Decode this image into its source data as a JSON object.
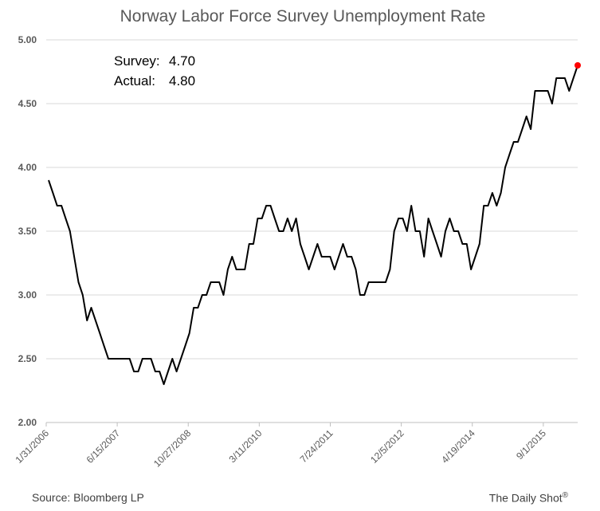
{
  "chart_data": {
    "type": "line",
    "title": "Norway Labor Force Survey Unemployment Rate",
    "xlabel": "",
    "ylabel": "",
    "ylim": [
      2.0,
      5.0
    ],
    "yticks": [
      "2.00",
      "2.50",
      "3.00",
      "3.50",
      "4.00",
      "4.50",
      "5.00"
    ],
    "xticks": [
      "1/31/2006",
      "6/15/2007",
      "10/27/2008",
      "3/11/2010",
      "7/24/2011",
      "12/5/2012",
      "4/19/2014",
      "9/1/2015"
    ],
    "x_start": "1/31/2006",
    "x_end": "4/30/2016",
    "grid": true,
    "series": [
      {
        "name": "",
        "color": "#000000",
        "values": [
          3.9,
          3.8,
          3.7,
          3.7,
          3.6,
          3.5,
          3.3,
          3.1,
          3.0,
          2.8,
          2.9,
          2.8,
          2.7,
          2.6,
          2.5,
          2.5,
          2.5,
          2.5,
          2.5,
          2.5,
          2.4,
          2.4,
          2.5,
          2.5,
          2.5,
          2.4,
          2.4,
          2.3,
          2.4,
          2.5,
          2.4,
          2.5,
          2.6,
          2.7,
          2.9,
          2.9,
          3.0,
          3.0,
          3.1,
          3.1,
          3.1,
          3.0,
          3.2,
          3.3,
          3.2,
          3.2,
          3.2,
          3.4,
          3.4,
          3.6,
          3.6,
          3.7,
          3.7,
          3.6,
          3.5,
          3.5,
          3.6,
          3.5,
          3.6,
          3.4,
          3.3,
          3.2,
          3.3,
          3.4,
          3.3,
          3.3,
          3.3,
          3.2,
          3.3,
          3.4,
          3.3,
          3.3,
          3.2,
          3.0,
          3.0,
          3.1,
          3.1,
          3.1,
          3.1,
          3.1,
          3.2,
          3.5,
          3.6,
          3.6,
          3.5,
          3.7,
          3.5,
          3.5,
          3.3,
          3.6,
          3.5,
          3.4,
          3.3,
          3.5,
          3.6,
          3.5,
          3.5,
          3.4,
          3.4,
          3.2,
          3.3,
          3.4,
          3.7,
          3.7,
          3.8,
          3.7,
          3.8,
          4.0,
          4.1,
          4.2,
          4.2,
          4.3,
          4.4,
          4.3,
          4.6,
          4.6,
          4.6,
          4.6,
          4.5,
          4.7,
          4.7,
          4.7,
          4.6,
          4.7,
          4.8
        ]
      }
    ],
    "highlight": {
      "label": "Actual",
      "value": 4.8,
      "color": "#ff0000"
    },
    "annotations": [
      {
        "label": "Survey:",
        "value": "4.70"
      },
      {
        "label": "Actual:",
        "value": "4.80"
      }
    ]
  },
  "footer": {
    "source": "Source: Bloomberg LP",
    "brand": "The Daily Shot",
    "brand_mark": "®"
  }
}
